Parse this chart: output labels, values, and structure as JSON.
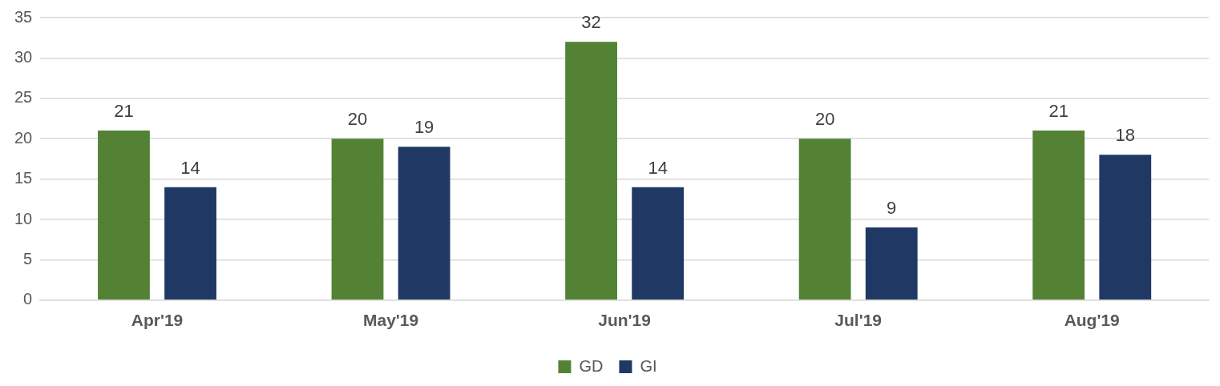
{
  "chart_data": {
    "type": "bar",
    "categories": [
      "Apr'19",
      "May'19",
      "Jun'19",
      "Jul'19",
      "Aug'19"
    ],
    "series": [
      {
        "name": "GD",
        "color": "#548235",
        "values": [
          21,
          20,
          32,
          20,
          21
        ]
      },
      {
        "name": "GI",
        "color": "#203864",
        "values": [
          14,
          19,
          14,
          9,
          18
        ]
      }
    ],
    "ylim": [
      0,
      35
    ],
    "yticks": [
      0,
      5,
      10,
      15,
      20,
      25,
      30,
      35
    ],
    "grid": "y",
    "legend": "bottom",
    "data_labels": true
  }
}
